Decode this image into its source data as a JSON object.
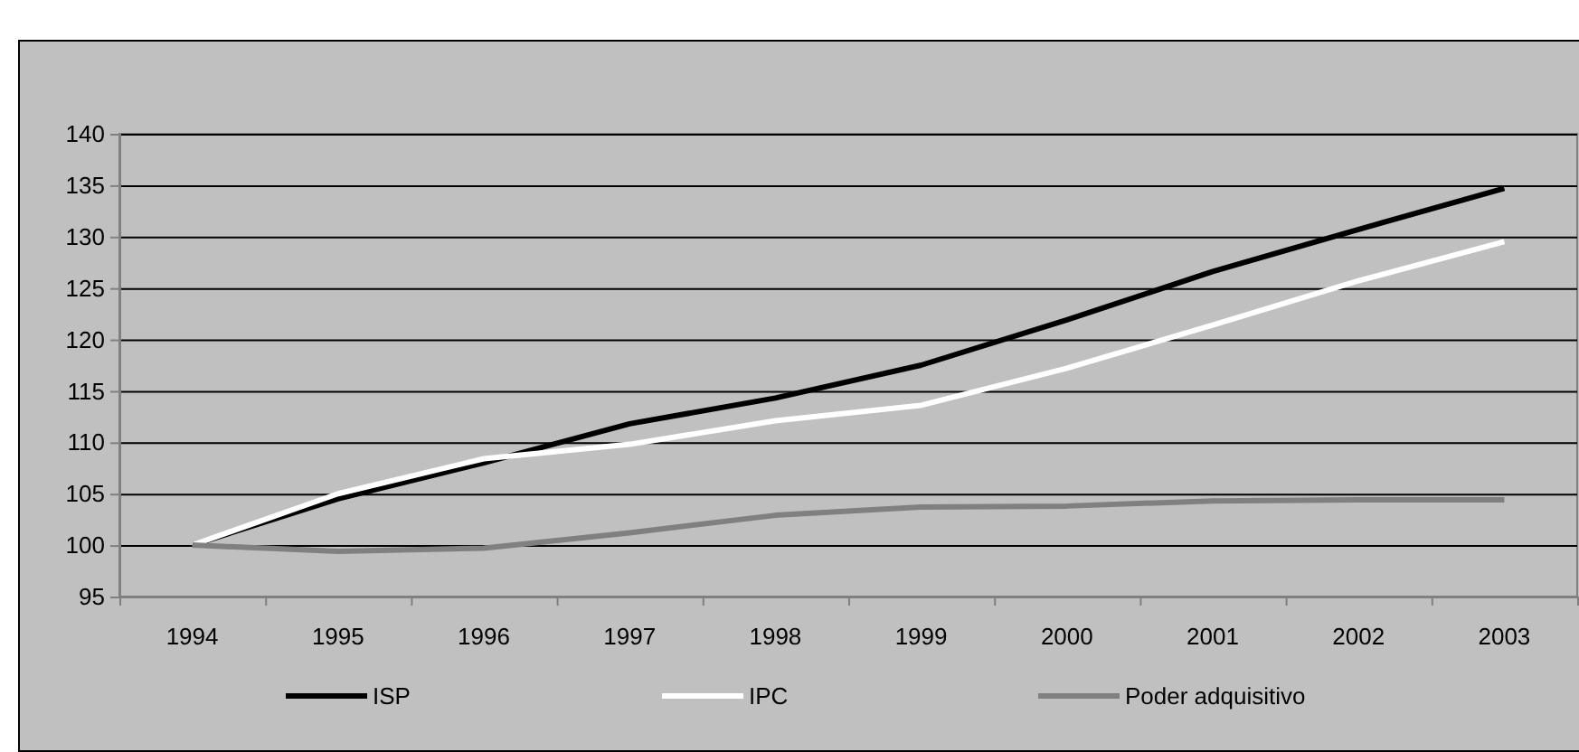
{
  "chart_data": {
    "type": "line",
    "categories": [
      "1994",
      "1995",
      "1996",
      "1997",
      "1998",
      "1999",
      "2000",
      "2001",
      "2002",
      "2003"
    ],
    "series": [
      {
        "name": "ISP",
        "color": "#000000",
        "values": [
          100,
          104.5,
          108,
          111.8,
          114.3,
          117.5,
          121.9,
          126.6,
          130.7,
          134.7
        ]
      },
      {
        "name": "IPC",
        "color": "#ffffff",
        "values": [
          100,
          105,
          108.4,
          109.8,
          112.1,
          113.6,
          117.2,
          121.4,
          125.7,
          129.5
        ]
      },
      {
        "name": "Poder adquisitivo",
        "color": "#808080",
        "values": [
          100,
          99.4,
          99.7,
          101.2,
          102.9,
          103.7,
          103.8,
          104.3,
          104.4,
          104.4
        ]
      }
    ],
    "ylim": [
      95,
      140
    ],
    "yticks": [
      95,
      100,
      105,
      110,
      115,
      120,
      125,
      130,
      135,
      140
    ],
    "grid": "y",
    "legend": "bottom"
  }
}
